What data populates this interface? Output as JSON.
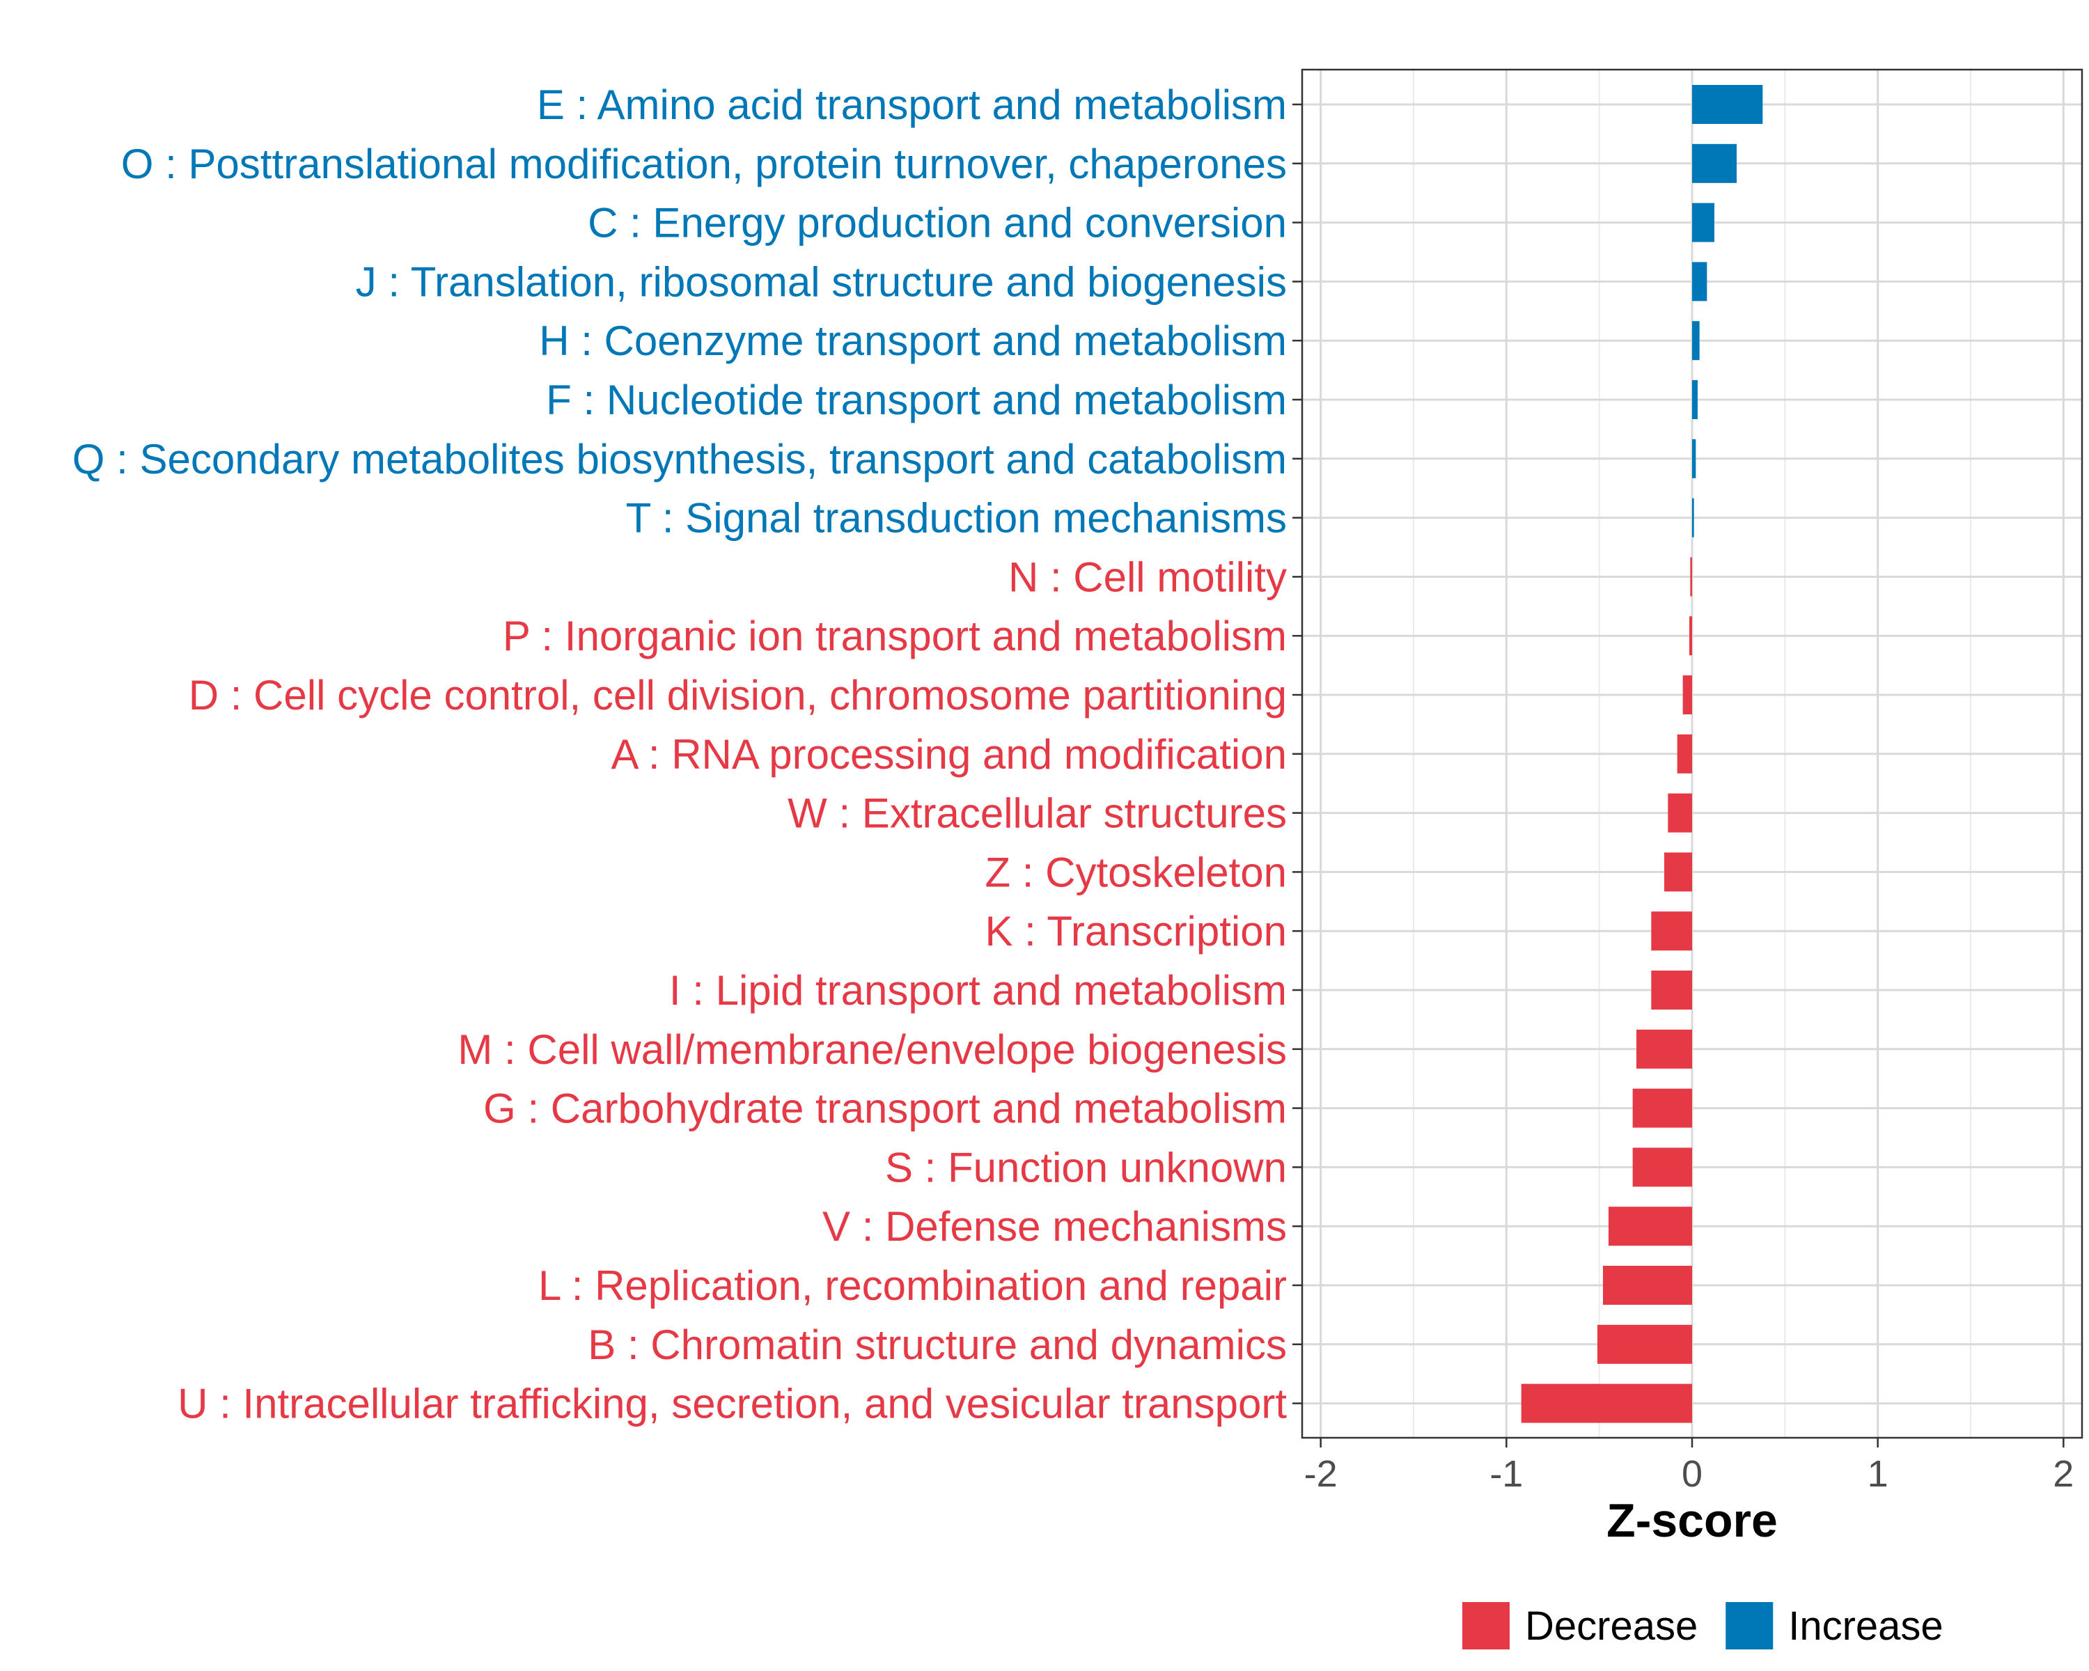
{
  "chart_data": {
    "type": "bar",
    "orientation": "horizontal",
    "xlabel": "Z-score",
    "ylabel": "",
    "xlim": [
      -2.1,
      2.1
    ],
    "xticks": [
      -2,
      -1,
      0,
      1,
      2
    ],
    "xtick_labels": [
      "-2",
      "-1",
      "0",
      "1",
      "2"
    ],
    "grid": true,
    "legend_position": "bottom",
    "legend": [
      {
        "name": "Decrease",
        "color": "#E63946"
      },
      {
        "name": "Increase",
        "color": "#0077B6"
      }
    ],
    "categories": [
      "E : Amino acid transport and metabolism",
      "O : Posttranslational modification, protein turnover, chaperones",
      "C : Energy production and conversion",
      "J : Translation, ribosomal structure and biogenesis",
      "H : Coenzyme transport and metabolism",
      "F : Nucleotide transport and metabolism",
      "Q : Secondary metabolites biosynthesis, transport and catabolism",
      "T : Signal transduction mechanisms",
      "N : Cell motility",
      "P : Inorganic ion transport and metabolism",
      "D : Cell cycle control, cell division, chromosome partitioning",
      "A : RNA processing and modification",
      "W : Extracellular structures",
      "Z : Cytoskeleton",
      "K : Transcription",
      "I : Lipid transport and metabolism",
      "M : Cell wall/membrane/envelope biogenesis",
      "G : Carbohydrate transport and metabolism",
      "S : Function unknown",
      "V : Defense mechanisms",
      "L : Replication, recombination and repair",
      "B : Chromatin structure and dynamics",
      "U : Intracellular trafficking, secretion, and vesicular transport"
    ],
    "values": [
      0.38,
      0.24,
      0.12,
      0.08,
      0.04,
      0.03,
      0.02,
      0.01,
      -0.01,
      -0.015,
      -0.05,
      -0.08,
      -0.13,
      -0.15,
      -0.22,
      -0.22,
      -0.3,
      -0.32,
      -0.32,
      -0.45,
      -0.48,
      -0.51,
      -0.92
    ],
    "groups": [
      "Increase",
      "Increase",
      "Increase",
      "Increase",
      "Increase",
      "Increase",
      "Increase",
      "Increase",
      "Decrease",
      "Decrease",
      "Decrease",
      "Decrease",
      "Decrease",
      "Decrease",
      "Decrease",
      "Decrease",
      "Decrease",
      "Decrease",
      "Decrease",
      "Decrease",
      "Decrease",
      "Decrease",
      "Decrease"
    ]
  }
}
